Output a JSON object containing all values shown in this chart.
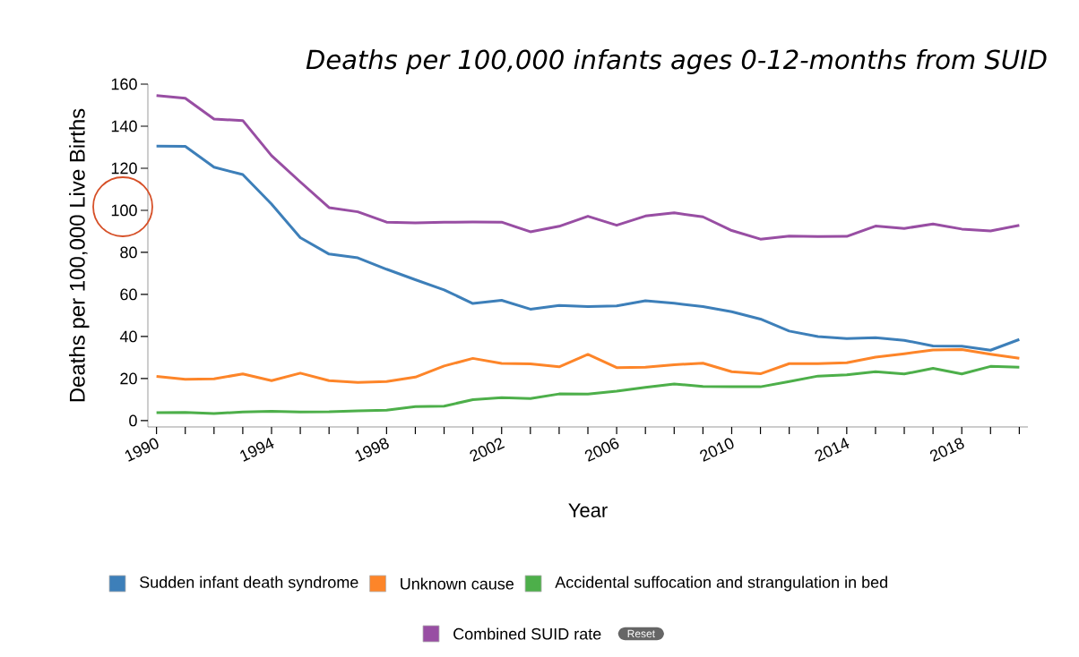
{
  "chart_data": {
    "type": "line",
    "title": "Deaths per 100,000 infants ages 0-12-months from SUID",
    "xlabel": "Year",
    "ylabel": "Deaths per 100,000 Live Births",
    "x": [
      1990,
      1991,
      1992,
      1993,
      1994,
      1995,
      1996,
      1997,
      1998,
      1999,
      2000,
      2001,
      2002,
      2003,
      2004,
      2005,
      2006,
      2007,
      2008,
      2009,
      2010,
      2011,
      2012,
      2013,
      2014,
      2015,
      2016,
      2017,
      2018,
      2019,
      2020
    ],
    "series": [
      {
        "name": "Sudden infant death syndrome",
        "color": "#3d7fb9",
        "values": [
          130.5,
          130.4,
          120.5,
          117,
          103,
          87,
          79.2,
          77.4,
          72,
          67,
          62.2,
          55.7,
          57.2,
          53,
          54.8,
          54.2,
          54.6,
          57,
          55.8,
          54.2,
          51.8,
          48.3,
          42.6,
          40,
          39,
          39.5,
          38.2,
          35.5,
          35.4,
          33.5,
          38.6
        ]
      },
      {
        "name": "Unknown cause",
        "color": "#fd8529",
        "values": [
          21,
          19.7,
          19.9,
          22.2,
          19,
          22.6,
          19,
          18.2,
          18.6,
          20.7,
          26,
          29.6,
          27.2,
          27,
          25.6,
          31.5,
          25.2,
          25.4,
          26.6,
          27.3,
          23.3,
          22.3,
          27.1,
          27.1,
          27.5,
          30.2,
          31.8,
          33.6,
          33.8,
          31.6,
          29.7
        ]
      },
      {
        "name": "Accidental suffocation and strangulation in bed",
        "color": "#4daf4a",
        "values": [
          3.8,
          3.9,
          3.4,
          4.1,
          4.4,
          4.1,
          4.2,
          4.7,
          5,
          6.7,
          6.9,
          10,
          10.9,
          10.5,
          12.7,
          12.6,
          14,
          15.8,
          17.4,
          16.3,
          16.1,
          16.1,
          18.6,
          21.2,
          21.8,
          23.3,
          22.2,
          24.9,
          22.2,
          25.8,
          25.4
        ]
      },
      {
        "name": "Combined SUID rate",
        "color": "#984ea3",
        "values": [
          154.6,
          153.3,
          143.4,
          142.7,
          126,
          113.5,
          101.3,
          99.3,
          94.4,
          94,
          94.3,
          94.5,
          94.4,
          89.8,
          92.4,
          97.2,
          92.9,
          97.3,
          98.8,
          96.9,
          90.4,
          86.3,
          87.8,
          87.5,
          87.6,
          92.5,
          91.4,
          93.5,
          91.1,
          90.2,
          92.9
        ]
      }
    ],
    "xlim": [
      1989.7,
      2020.3
    ],
    "ylim": [
      -3,
      160
    ],
    "xticks": [
      1990,
      {
        "value": 1991,
        "label": null
      },
      {
        "value": 1992,
        "label": null
      },
      {
        "value": 1993,
        "label": null
      },
      1994,
      {
        "value": 1995,
        "label": null
      },
      {
        "value": 1996,
        "label": null
      },
      {
        "value": 1997,
        "label": null
      },
      1998,
      {
        "value": 1999,
        "label": null
      },
      {
        "value": 2000,
        "label": null
      },
      {
        "value": 2001,
        "label": null
      },
      2002,
      {
        "value": 2003,
        "label": null
      },
      {
        "value": 2004,
        "label": null
      },
      {
        "value": 2005,
        "label": null
      },
      2006,
      {
        "value": 2007,
        "label": null
      },
      {
        "value": 2008,
        "label": null
      },
      {
        "value": 2009,
        "label": null
      },
      2010,
      {
        "value": 2011,
        "label": null
      },
      {
        "value": 2012,
        "label": null
      },
      {
        "value": 2013,
        "label": null
      },
      2014,
      {
        "value": 2015,
        "label": null
      },
      {
        "value": 2016,
        "label": null
      },
      {
        "value": 2017,
        "label": null
      },
      2018,
      {
        "value": 2019,
        "label": null
      },
      {
        "value": 2020,
        "label": null
      }
    ],
    "yticks": [
      0,
      20,
      40,
      60,
      80,
      100,
      120,
      140,
      160
    ],
    "grid": false,
    "legend": "bottom",
    "marker": "none",
    "line_style": "solid",
    "annotations": [
      "Reset"
    ]
  }
}
